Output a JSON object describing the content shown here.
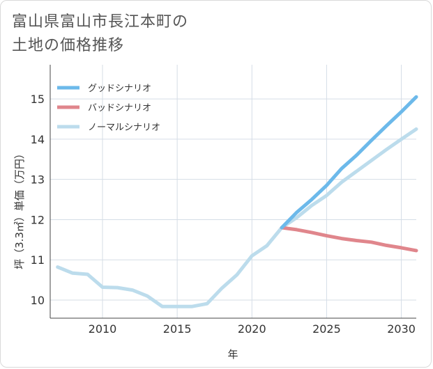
{
  "page": {
    "title_line1": "富山県富山市長江本町の",
    "title_line2": "土地の価格推移"
  },
  "chart_data": {
    "type": "line",
    "title": "富山県富山市長江本町の土地の価格推移",
    "xlabel": "年",
    "ylabel": "坪（3.3㎡）単価（万円）",
    "xlim": [
      2006.5,
      2031
    ],
    "ylim": [
      9.55,
      15.85
    ],
    "xticks": [
      2010,
      2015,
      2020,
      2025,
      2030
    ],
    "yticks": [
      10,
      11,
      12,
      13,
      14,
      15
    ],
    "grid": true,
    "legend_position": "top-left",
    "series": [
      {
        "name": "グッドシナリオ",
        "color": "#6cb9ea",
        "x": [
          2022,
          2023,
          2024,
          2025,
          2026,
          2027,
          2028,
          2029,
          2030,
          2031
        ],
        "values": [
          11.8,
          12.18,
          12.5,
          12.85,
          13.27,
          13.6,
          13.97,
          14.33,
          14.68,
          15.05
        ]
      },
      {
        "name": "バッドシナリオ",
        "color": "#e0868c",
        "x": [
          2022,
          2023,
          2024,
          2025,
          2026,
          2027,
          2028,
          2029,
          2030,
          2031
        ],
        "values": [
          11.8,
          11.75,
          11.68,
          11.6,
          11.53,
          11.48,
          11.44,
          11.36,
          11.3,
          11.23
        ]
      },
      {
        "name": "ノーマルシナリオ",
        "color": "#bcdcec",
        "x": [
          2007,
          2008,
          2009,
          2010,
          2011,
          2012,
          2013,
          2014,
          2015,
          2016,
          2017,
          2018,
          2019,
          2020,
          2021,
          2022,
          2023,
          2024,
          2025,
          2026,
          2027,
          2028,
          2029,
          2030,
          2031
        ],
        "values": [
          10.82,
          10.67,
          10.64,
          10.32,
          10.31,
          10.25,
          10.1,
          9.84,
          9.84,
          9.84,
          9.91,
          10.3,
          10.63,
          11.1,
          11.35,
          11.8,
          12.05,
          12.35,
          12.6,
          12.93,
          13.2,
          13.47,
          13.74,
          14.0,
          14.25
        ]
      }
    ]
  }
}
